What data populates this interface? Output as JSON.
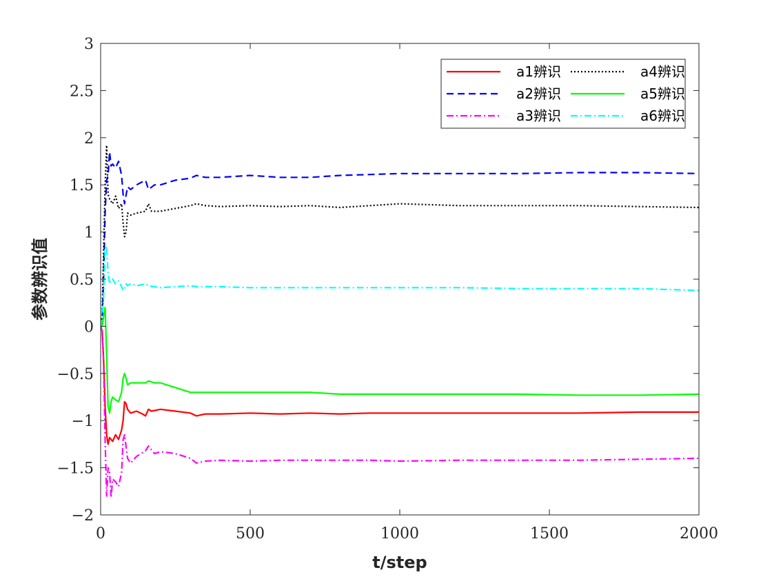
{
  "chart_data": {
    "type": "line",
    "xlabel": "t/step",
    "ylabel": "参数辨识值",
    "xlim": [
      0,
      2000
    ],
    "ylim": [
      -2,
      3
    ],
    "xticks": [
      0,
      500,
      1000,
      1500,
      2000
    ],
    "yticks": [
      -2,
      -1.5,
      -1,
      -0.5,
      0,
      0.5,
      1,
      1.5,
      2,
      2.5,
      3
    ],
    "xtick_labels": [
      "0",
      "500",
      "1000",
      "1500",
      "2000"
    ],
    "ytick_labels": [
      "−2",
      "−1.5",
      "−1",
      "−0.5",
      "0",
      "0.5",
      "1",
      "1.5",
      "2",
      "2.5",
      "3"
    ],
    "grid": false,
    "legend_position": "top-right",
    "series": [
      {
        "name": "a1辨识",
        "color": "#ff0000",
        "style": "solid",
        "x": [
          0,
          5,
          10,
          15,
          20,
          25,
          30,
          40,
          50,
          60,
          70,
          75,
          80,
          85,
          90,
          100,
          120,
          140,
          150,
          160,
          170,
          200,
          250,
          300,
          320,
          350,
          400,
          500,
          600,
          700,
          800,
          900,
          1000,
          1200,
          1400,
          1600,
          1800,
          2000
        ],
        "y": [
          0,
          -0.05,
          -0.35,
          -0.85,
          -1.15,
          -1.25,
          -1.18,
          -1.22,
          -1.15,
          -1.2,
          -1.1,
          -1.0,
          -0.8,
          -0.82,
          -0.88,
          -0.92,
          -0.9,
          -0.93,
          -0.95,
          -0.88,
          -0.9,
          -0.88,
          -0.9,
          -0.92,
          -0.95,
          -0.93,
          -0.93,
          -0.92,
          -0.93,
          -0.92,
          -0.93,
          -0.92,
          -0.92,
          -0.92,
          -0.92,
          -0.92,
          -0.91,
          -0.91
        ]
      },
      {
        "name": "a2辨识",
        "color": "#0000ff",
        "style": "dashed",
        "x": [
          0,
          5,
          10,
          15,
          20,
          25,
          30,
          35,
          40,
          50,
          60,
          70,
          75,
          80,
          90,
          100,
          120,
          150,
          160,
          180,
          200,
          250,
          300,
          320,
          350,
          400,
          500,
          600,
          700,
          800,
          900,
          1000,
          1200,
          1400,
          1600,
          1800,
          2000
        ],
        "y": [
          0,
          0.05,
          0.5,
          1.2,
          1.55,
          1.6,
          1.85,
          1.7,
          1.72,
          1.68,
          1.75,
          1.6,
          1.4,
          1.3,
          1.48,
          1.45,
          1.5,
          1.55,
          1.45,
          1.5,
          1.5,
          1.55,
          1.57,
          1.6,
          1.58,
          1.58,
          1.6,
          1.58,
          1.58,
          1.6,
          1.61,
          1.62,
          1.62,
          1.62,
          1.63,
          1.63,
          1.62
        ]
      },
      {
        "name": "a3辨识",
        "color": "#ff00ff",
        "style": "dashdot",
        "x": [
          0,
          5,
          10,
          15,
          20,
          25,
          30,
          35,
          40,
          50,
          60,
          70,
          75,
          80,
          90,
          100,
          120,
          150,
          160,
          180,
          200,
          250,
          300,
          320,
          350,
          400,
          500,
          600,
          700,
          800,
          900,
          1000,
          1200,
          1400,
          1600,
          1800,
          2000
        ],
        "y": [
          0,
          -0.05,
          -0.4,
          -1.2,
          -1.8,
          -1.5,
          -1.55,
          -1.82,
          -1.62,
          -1.65,
          -1.7,
          -1.55,
          -1.2,
          -1.15,
          -1.4,
          -1.45,
          -1.38,
          -1.32,
          -1.27,
          -1.35,
          -1.33,
          -1.35,
          -1.4,
          -1.45,
          -1.43,
          -1.42,
          -1.43,
          -1.42,
          -1.42,
          -1.42,
          -1.42,
          -1.43,
          -1.42,
          -1.42,
          -1.42,
          -1.41,
          -1.4
        ]
      },
      {
        "name": "a4辨识",
        "color": "#000000",
        "style": "dotted",
        "x": [
          0,
          5,
          10,
          15,
          20,
          25,
          30,
          40,
          50,
          60,
          70,
          75,
          80,
          85,
          90,
          100,
          120,
          150,
          160,
          170,
          200,
          250,
          300,
          320,
          350,
          400,
          500,
          600,
          700,
          800,
          900,
          1000,
          1200,
          1400,
          1600,
          1800,
          2000
        ],
        "y": [
          0,
          0.1,
          0.8,
          1.5,
          1.92,
          1.4,
          1.35,
          1.3,
          1.38,
          1.25,
          1.3,
          1.1,
          0.95,
          1.0,
          1.2,
          1.18,
          1.2,
          1.22,
          1.3,
          1.22,
          1.22,
          1.25,
          1.28,
          1.3,
          1.28,
          1.27,
          1.28,
          1.27,
          1.28,
          1.26,
          1.28,
          1.3,
          1.28,
          1.28,
          1.28,
          1.27,
          1.26
        ]
      },
      {
        "name": "a5辨识",
        "color": "#00ff00",
        "style": "solid",
        "x": [
          0,
          5,
          10,
          15,
          20,
          25,
          30,
          35,
          40,
          50,
          60,
          70,
          75,
          80,
          85,
          90,
          100,
          120,
          150,
          160,
          180,
          200,
          250,
          300,
          320,
          350,
          400,
          500,
          600,
          700,
          800,
          900,
          1000,
          1200,
          1400,
          1600,
          1800,
          2000
        ],
        "y": [
          0,
          0.0,
          0.1,
          0.2,
          -0.3,
          -0.85,
          -0.92,
          -0.8,
          -0.75,
          -0.78,
          -0.8,
          -0.7,
          -0.55,
          -0.5,
          -0.55,
          -0.62,
          -0.6,
          -0.6,
          -0.6,
          -0.58,
          -0.6,
          -0.6,
          -0.65,
          -0.7,
          -0.7,
          -0.7,
          -0.7,
          -0.7,
          -0.7,
          -0.7,
          -0.72,
          -0.72,
          -0.72,
          -0.72,
          -0.72,
          -0.73,
          -0.73,
          -0.72
        ]
      },
      {
        "name": "a6辨识",
        "color": "#00ffff",
        "style": "dashdot",
        "x": [
          0,
          5,
          10,
          15,
          20,
          25,
          30,
          35,
          40,
          50,
          60,
          70,
          75,
          80,
          85,
          90,
          100,
          120,
          150,
          160,
          180,
          200,
          250,
          300,
          320,
          350,
          400,
          500,
          600,
          700,
          800,
          900,
          1000,
          1200,
          1400,
          1600,
          1800,
          2000
        ],
        "y": [
          0,
          0.1,
          0.3,
          0.8,
          0.85,
          0.55,
          0.45,
          0.5,
          0.5,
          0.45,
          0.48,
          0.42,
          0.38,
          0.4,
          0.45,
          0.43,
          0.45,
          0.43,
          0.45,
          0.43,
          0.42,
          0.41,
          0.42,
          0.43,
          0.42,
          0.42,
          0.42,
          0.41,
          0.41,
          0.41,
          0.41,
          0.41,
          0.41,
          0.41,
          0.4,
          0.4,
          0.4,
          0.38
        ]
      }
    ]
  }
}
